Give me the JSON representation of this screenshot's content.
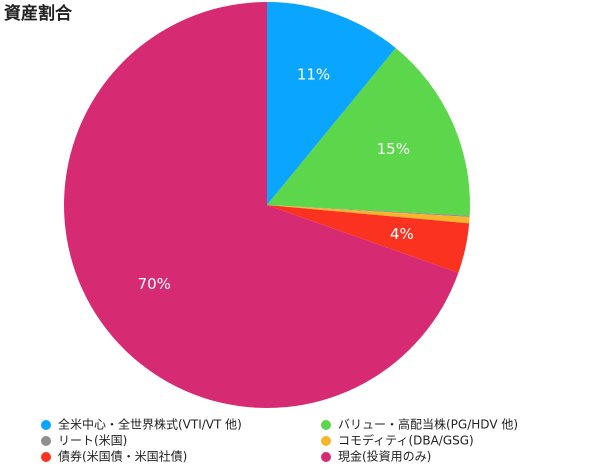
{
  "chart_data": {
    "type": "pie",
    "title": "資産割合",
    "categories": [
      "全米中心・全世界株式(VTI/VT 他)",
      "バリュー・高配当株(PG/HDV 他)",
      "リート(米国)",
      "コモディティ(DBA/GSG)",
      "債券(米国債・米国社債)",
      "現金(投資用のみ)"
    ],
    "values": [
      11,
      15,
      0.1,
      0.5,
      4,
      70
    ],
    "value_labels": [
      "11%",
      "15%",
      null,
      null,
      "4%",
      "70%"
    ],
    "colors": [
      "#0aa5ff",
      "#5cd64a",
      "#8e8e8e",
      "#f7b52c",
      "#fb3220",
      "#d62b73"
    ]
  }
}
